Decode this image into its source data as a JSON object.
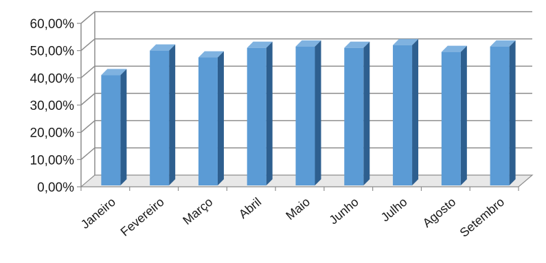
{
  "chart_data": {
    "type": "bar",
    "style": "3d-column",
    "categories": [
      "Janeiro",
      "Fevereiro",
      "Março",
      "Abril",
      "Maio",
      "Junho",
      "Julho",
      "Agosto",
      "Setembro"
    ],
    "values": [
      40.5,
      49.5,
      47.0,
      50.5,
      51.0,
      50.5,
      51.5,
      49.0,
      51.0
    ],
    "y_ticks": [
      "0,00%",
      "10,00%",
      "20,00%",
      "30,00%",
      "40,00%",
      "50,00%",
      "60,00%"
    ],
    "ylim": [
      0,
      60
    ],
    "value_format": "percent",
    "grid": true,
    "legend": "none",
    "title": "",
    "xlabel": "",
    "ylabel": "",
    "colors": {
      "bar_front": "#5B9BD5",
      "bar_side": "#2E5F8F",
      "bar_top": "#7FB2E0",
      "gridline": "#8c8c8c",
      "floor": "#e8e8e8"
    }
  }
}
